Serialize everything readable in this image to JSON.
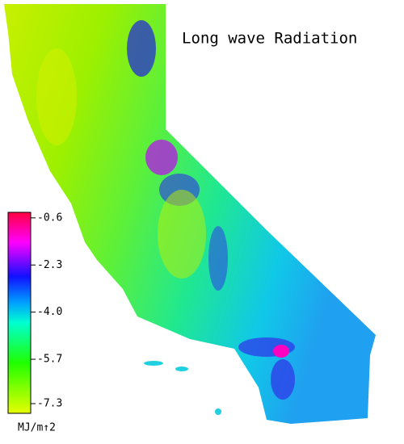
{
  "title": "Long wave Radiation",
  "colorbar": {
    "lim": [
      -7.65,
      -0.4
    ],
    "ticks": [
      -0.6,
      -2.3,
      {
        "value": -4,
        "label": "-4.0"
      },
      -5.7,
      -7.3
    ],
    "unit": "MJ/m↑2"
  }
}
